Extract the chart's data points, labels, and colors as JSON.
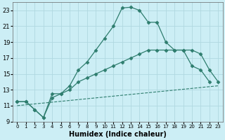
{
  "xlabel": "Humidex (Indice chaleur)",
  "background_color": "#cceef5",
  "grid_color": "#b0d8e0",
  "line1_x": [
    0,
    1,
    2,
    3,
    4,
    5,
    6,
    7,
    8,
    9,
    10,
    11,
    12,
    13,
    14,
    15,
    16,
    17,
    18,
    19,
    20,
    21,
    22
  ],
  "line1_y": [
    11.5,
    11.5,
    10.5,
    9.5,
    12.5,
    12.5,
    13.5,
    15.5,
    16.5,
    18.0,
    19.5,
    21.0,
    23.3,
    23.4,
    23.0,
    21.5,
    21.5,
    19.0,
    18.0,
    18.0,
    16.0,
    15.5,
    14.0
  ],
  "line2_x": [
    0,
    1,
    2,
    3,
    4,
    5,
    6,
    7,
    8,
    9,
    10,
    11,
    12,
    13,
    14,
    15,
    16,
    17,
    18,
    19,
    20,
    21,
    22,
    23
  ],
  "line2_y": [
    11.5,
    11.5,
    10.5,
    9.5,
    12.0,
    12.5,
    13.0,
    14.0,
    14.5,
    15.0,
    15.5,
    16.0,
    16.5,
    17.0,
    17.5,
    18.0,
    18.0,
    18.0,
    18.0,
    18.0,
    18.0,
    17.5,
    15.5,
    14.0
  ],
  "line3_x": [
    0,
    23
  ],
  "line3_y": [
    11.0,
    13.5
  ],
  "line_color": "#2e7d6e",
  "marker": "D",
  "marker_size": 2.5,
  "xlim": [
    -0.5,
    23.5
  ],
  "ylim": [
    9,
    24
  ],
  "yticks": [
    9,
    11,
    13,
    15,
    17,
    19,
    21,
    23
  ],
  "xtick_labels": [
    "0",
    "1",
    "2",
    "3",
    "4",
    "5",
    "6",
    "7",
    "8",
    "9",
    "10",
    "11",
    "12",
    "13",
    "14",
    "15",
    "16",
    "17",
    "18",
    "19",
    "20",
    "21",
    "22",
    "23"
  ]
}
